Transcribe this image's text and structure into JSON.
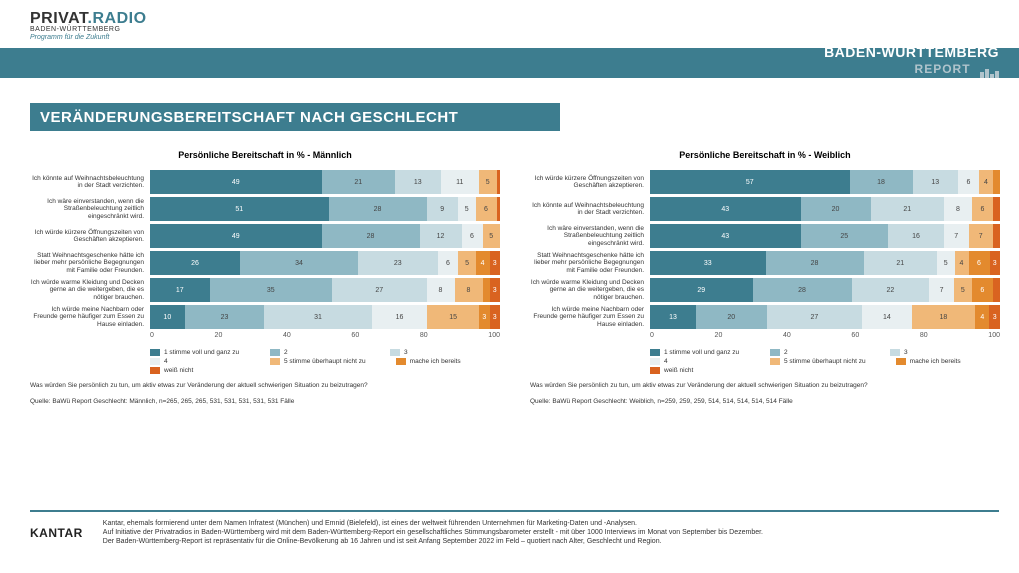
{
  "logo": {
    "main_privat": "PRIVAT",
    "main_radio": ".RADIO",
    "sub": "BADEN-WÜRTTEMBERG",
    "slogan": "Programm für die Zukunft"
  },
  "header": {
    "region": "BADEN-WÜRTTEMBERG",
    "report": "REPORT"
  },
  "title": "VERÄNDERUNGSBEREITSCHAFT NACH GESCHLECHT",
  "colors": {
    "c1": "#3d7d8f",
    "c2": "#8fb8c4",
    "c3": "#c7dbe1",
    "c4": "#e8eff1",
    "c5": "#f0b878",
    "c6": "#e38a2e",
    "c7": "#d96320",
    "band": "#3d7d8f",
    "bg": "#ffffff",
    "text": "#333333"
  },
  "legend_labels": {
    "l1": "1 stimme voll und ganz zu",
    "l2": "2",
    "l3": "3",
    "l4": "4",
    "l5": "5 stimme überhaupt nicht zu",
    "l6": "mache ich bereits",
    "l7": "weiß nicht"
  },
  "axis": {
    "ticks": [
      0,
      20,
      40,
      60,
      80,
      100
    ],
    "xmax": 100
  },
  "chart_left": {
    "title": "Persönliche Bereitschaft in % - Männlich",
    "rows": [
      {
        "label": "Ich könnte auf Weihnachtsbeleuchtung in der Stadt verzichten.",
        "vals": [
          49,
          21,
          13,
          11,
          5,
          0,
          1
        ]
      },
      {
        "label": "Ich wäre einverstanden, wenn die Straßenbeleuchtung zeitlich eingeschränkt wird.",
        "vals": [
          51,
          28,
          9,
          5,
          6,
          0,
          1
        ]
      },
      {
        "label": "Ich würde kürzere Öffnungszeiten von Geschäften akzeptieren.",
        "vals": [
          49,
          28,
          12,
          6,
          5,
          0,
          0
        ]
      },
      {
        "label": "Statt Weihnachtsgeschenke hätte ich lieber mehr persönliche Begegnungen mit Familie oder Freunden.",
        "vals": [
          26,
          34,
          23,
          6,
          5,
          4,
          3
        ]
      },
      {
        "label": "Ich würde warme Kleidung und Decken gerne an die weitergeben, die es nötiger brauchen.",
        "vals": [
          17,
          35,
          27,
          8,
          8,
          2,
          3
        ]
      },
      {
        "label": "Ich würde meine Nachbarn oder Freunde gerne häufiger zum Essen zu Hause einladen.",
        "vals": [
          10,
          23,
          31,
          16,
          15,
          3,
          3
        ]
      }
    ],
    "question": "Was würden Sie persönlich zu tun, um aktiv etwas zur Veränderung der aktuell schwierigen Situation zu beizutragen?",
    "source": "Quelle: BaWü Report Geschlecht: Männlich, n=265, 265, 265, 531, 531, 531, 531, 531 Fälle"
  },
  "chart_right": {
    "title": "Persönliche Bereitschaft in % - Weiblich",
    "rows": [
      {
        "label": "Ich würde kürzere Öffnungszeiten von Geschäften akzeptieren.",
        "vals": [
          57,
          18,
          13,
          6,
          4,
          2,
          0
        ]
      },
      {
        "label": "Ich könnte auf Weihnachtsbeleuchtung in der Stadt verzichten.",
        "vals": [
          43,
          20,
          21,
          8,
          6,
          0,
          2
        ]
      },
      {
        "label": "Ich wäre einverstanden, wenn die Straßenbeleuchtung zeitlich eingeschränkt wird.",
        "vals": [
          43,
          25,
          16,
          7,
          7,
          0,
          2
        ]
      },
      {
        "label": "Statt Weihnachtsgeschenke hätte ich lieber mehr persönliche Begegnungen mit Familie oder Freunden.",
        "vals": [
          33,
          28,
          21,
          5,
          4,
          6,
          3
        ]
      },
      {
        "label": "Ich würde warme Kleidung und Decken gerne an die weitergeben, die es nötiger brauchen.",
        "vals": [
          29,
          28,
          22,
          7,
          5,
          6,
          2
        ]
      },
      {
        "label": "Ich würde meine Nachbarn oder Freunde gerne häufiger zum Essen zu Hause einladen.",
        "vals": [
          13,
          20,
          27,
          14,
          18,
          4,
          3
        ]
      }
    ],
    "question": "Was würden Sie persönlich zu tun, um aktiv etwas zur Veränderung der aktuell schwierigen Situation zu beizutragen?",
    "source": "Quelle: BaWü Report Geschlecht: Weiblich, n=259, 259, 259, 514, 514, 514, 514, 514 Fälle"
  },
  "footer": {
    "kantar": "KANTAR",
    "line1": "Kantar, ehemals formierend unter dem Namen Infratest (München) und Emnid (Bielefeld), ist eines der weltweit führenden Unternehmen für Marketing-Daten und -Analysen.",
    "line2": "Auf Initiative der Privatradios in Baden-Württemberg wird mit dem Baden-Württemberg-Report ein gesellschaftliches Stimmungsbarometer erstellt - mit über 1000 Interviews im Monat von September bis Dezember.",
    "line3": "Der Baden-Württemberg-Report ist repräsentativ für die Online-Bevölkerung ab 16 Jahren und ist seit Anfang September 2022 im Feld – quotiert nach Alter, Geschlecht und Region."
  }
}
